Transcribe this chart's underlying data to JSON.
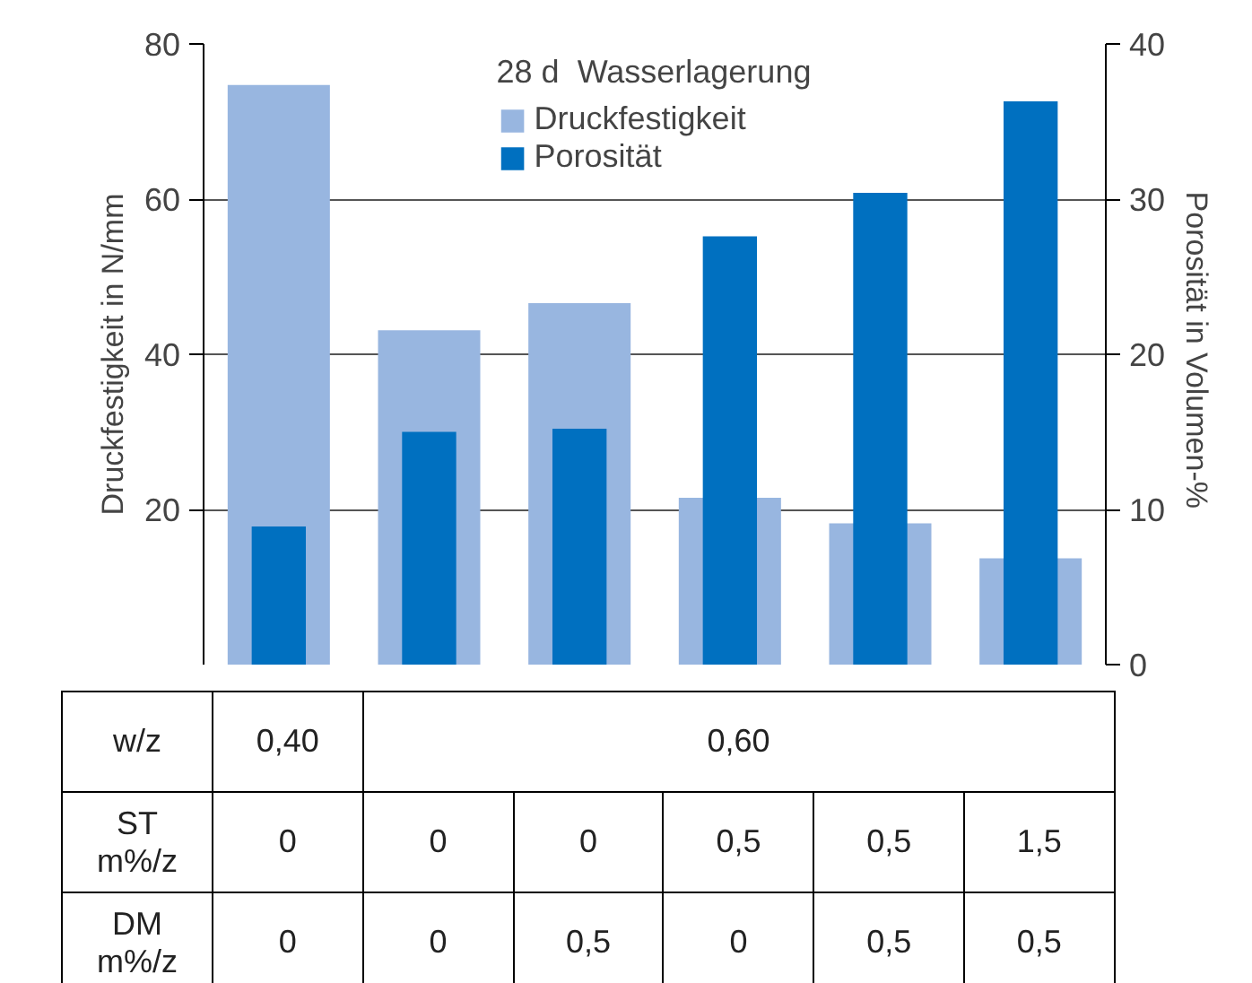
{
  "chart_data": {
    "type": "bar",
    "categories": [
      null,
      null,
      null,
      null,
      null,
      null
    ],
    "legend_title": "28 d  Wasserlagerung",
    "ylabel": "Druckfestigkeit in N/mm",
    "y2label": "Porosität  in Volumen-%",
    "series": [
      {
        "name": "Druckfestigkeit",
        "color": "#98b6e0",
        "values": [
          74.7,
          43.1,
          46.6,
          21.5,
          18.2,
          13.7
        ]
      },
      {
        "name": "Porosität",
        "color": "#0070c0",
        "axis": "y2",
        "values": [
          8.9,
          15.0,
          15.2,
          27.6,
          30.4,
          36.3
        ]
      }
    ],
    "ylim": [
      0,
      80
    ],
    "yticks": [
      20,
      40,
      60,
      80
    ],
    "y2lim": [
      0,
      40
    ],
    "y2ticks": [
      0,
      10,
      20,
      30,
      40
    ],
    "grid": "y",
    "legend": "top",
    "annotations": [
      "w/z",
      "0,40",
      "0,60",
      "ST\nm%/z",
      "0",
      "0",
      "0",
      "0,5",
      "0,5",
      "1,5",
      "DM\nm%/z",
      "0",
      "0",
      "0,5",
      "0",
      "0,5",
      "0,5"
    ]
  }
}
